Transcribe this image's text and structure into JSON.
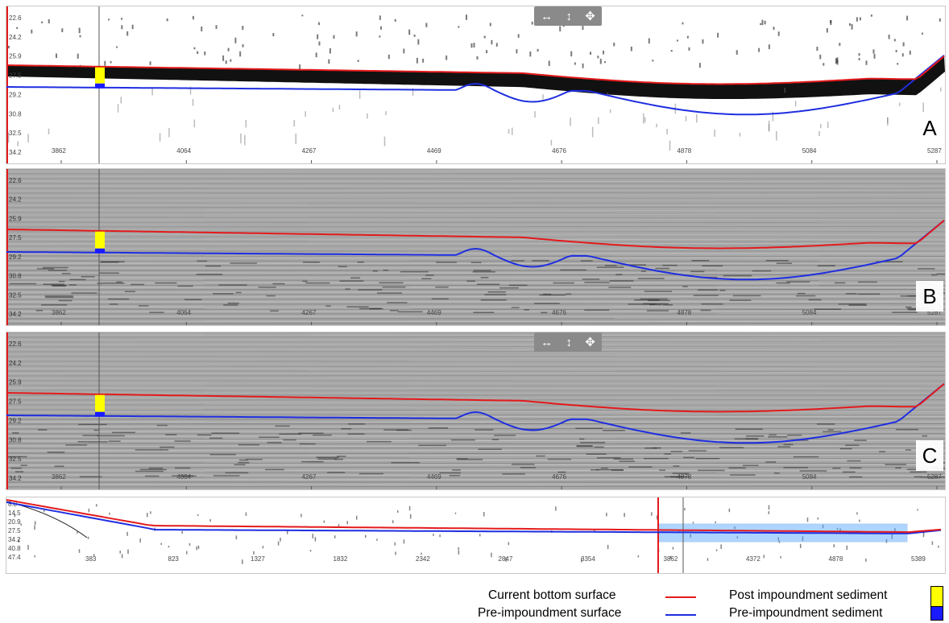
{
  "panels": [
    {
      "id": "A",
      "depth_ticks": [
        "22.6",
        "24.2",
        "25.9",
        "27.5",
        "29.2",
        "30.8",
        "32.5",
        "34.2"
      ],
      "x_ticks": [
        "3862",
        "4064",
        "4267",
        "4469",
        "4676",
        "4878",
        "5084",
        "5287"
      ],
      "has_toolbar": true,
      "style": "echo"
    },
    {
      "id": "B",
      "depth_ticks": [
        "22.6",
        "24.2",
        "25.9",
        "27.5",
        "29.2",
        "30.8",
        "32.5",
        "34.2"
      ],
      "x_ticks": [
        "3862",
        "4064",
        "4267",
        "4469",
        "4676",
        "4878",
        "5084",
        "5287"
      ],
      "has_toolbar": false,
      "style": "seismic"
    },
    {
      "id": "C",
      "depth_ticks": [
        "22.6",
        "24.2",
        "25.9",
        "27.5",
        "29.2",
        "30.8",
        "32.5",
        "34.2"
      ],
      "x_ticks": [
        "3862",
        "4064",
        "4267",
        "4469",
        "4676",
        "4878",
        "5084",
        "5287"
      ],
      "has_toolbar": true,
      "style": "seismic"
    }
  ],
  "toolbar": {
    "pan_h_icon": "↔",
    "pan_v_icon": "↕",
    "move_icon": "✥"
  },
  "overview": {
    "depth_ticks": [
      "8.0",
      "14.5",
      "20.9",
      "27.5",
      "34.2",
      "40.8",
      "47.4"
    ],
    "x_ticks": [
      "383",
      "823",
      "1327",
      "1832",
      "2342",
      "2847",
      "3354",
      "3862",
      "4372",
      "4878",
      "5389"
    ]
  },
  "legend": {
    "current_bottom": "Current bottom surface",
    "pre_impoundment_surface": "Pre-impoundment surface",
    "post_sediment": "Post impoundment sediment",
    "pre_sediment": "Pre-impoundment sediment"
  },
  "colors": {
    "current_bottom": "#e31a1c",
    "pre_impoundment": "#1f2ee0",
    "post_sediment": "#ffff00",
    "pre_sediment": "#1a1aff",
    "selection": "#4da3ff"
  }
}
